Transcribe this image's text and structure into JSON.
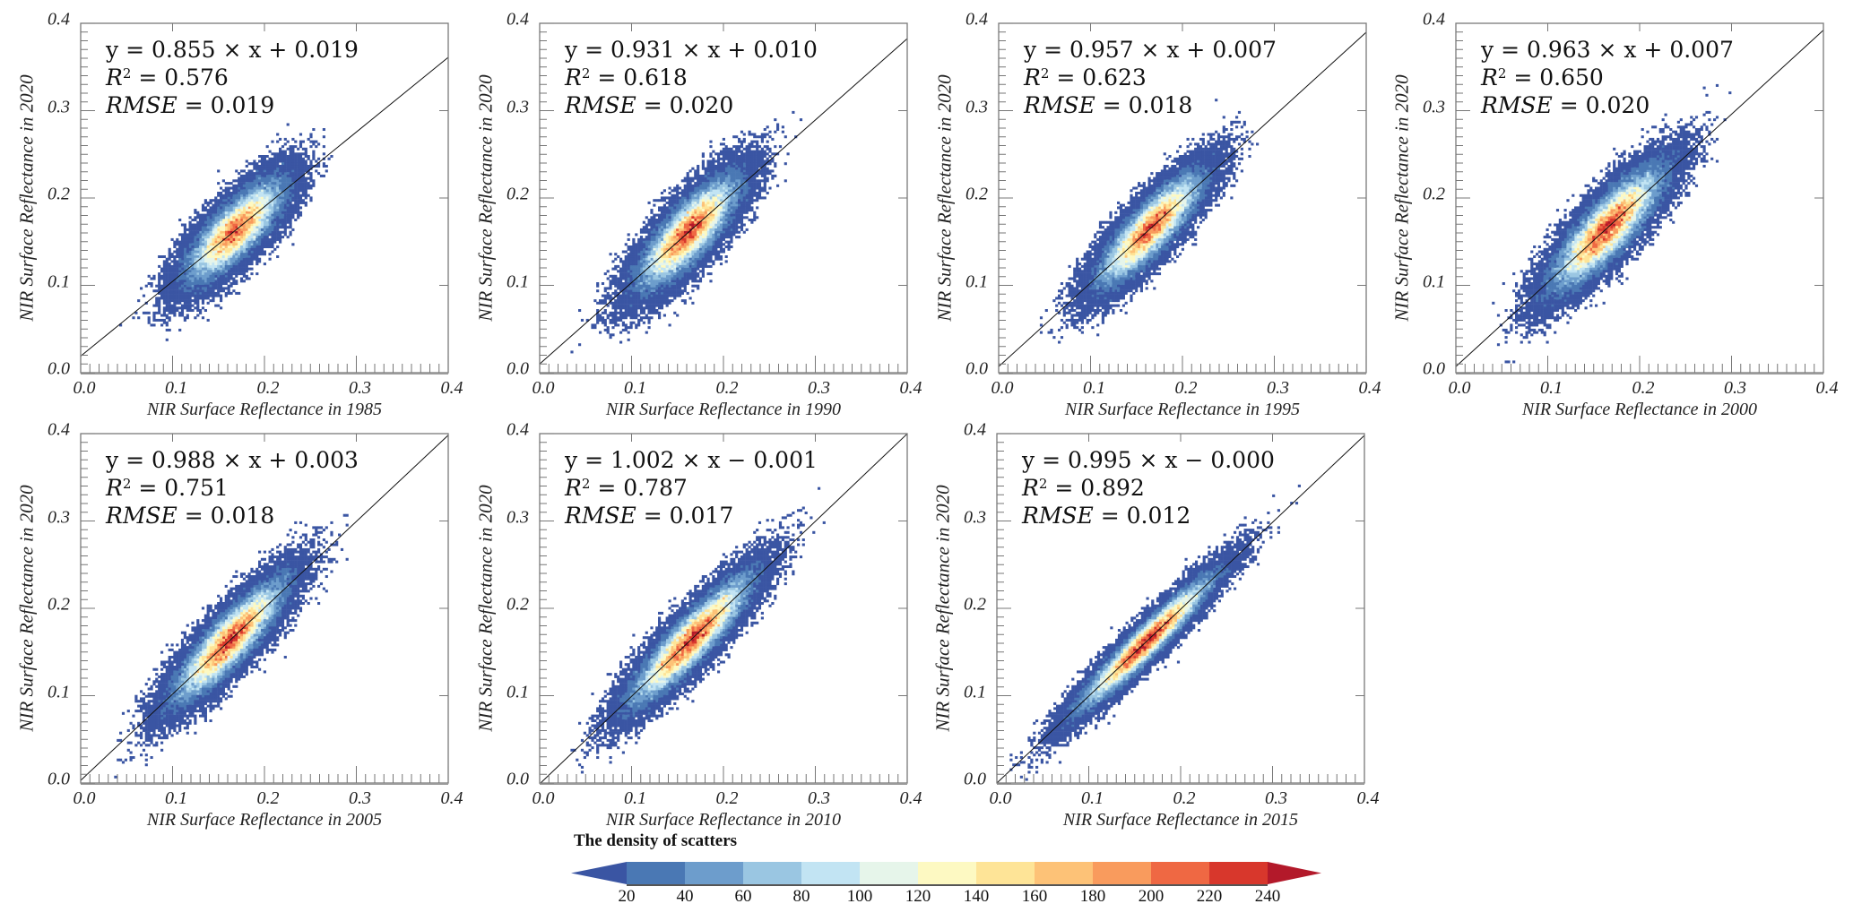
{
  "stat_labels": {
    "r2": "R",
    "r2_sup": "2",
    "rmse": "RMSE"
  },
  "chart_data": [
    {
      "type": "scatter",
      "subtype": "density",
      "xlabel": "NIR Surface Reflectance in 1985",
      "ylabel": "NIR Surface Reflectance in 2020",
      "xlim": [
        0,
        0.4
      ],
      "ylim": [
        0,
        0.4
      ],
      "xticks": [
        "0.0",
        "0.1",
        "0.2",
        "0.3",
        "0.4"
      ],
      "yticks": [
        "0.0",
        "0.1",
        "0.2",
        "0.3",
        "0.4"
      ],
      "equation": "y = 0.855 × x + 0.019",
      "r2": "0.576",
      "rmse": "0.019",
      "fit": {
        "slope": 0.855,
        "intercept": 0.019
      },
      "cloud": {
        "x_mean": 0.168,
        "x_sd": 0.028
      }
    },
    {
      "type": "scatter",
      "subtype": "density",
      "xlabel": "NIR Surface Reflectance in 1990",
      "ylabel": "NIR Surface Reflectance in 2020",
      "xlim": [
        0,
        0.4
      ],
      "ylim": [
        0,
        0.4
      ],
      "xticks": [
        "0.0",
        "0.1",
        "0.2",
        "0.3",
        "0.4"
      ],
      "yticks": [
        "0.0",
        "0.1",
        "0.2",
        "0.3",
        "0.4"
      ],
      "equation": "y = 0.931 × x + 0.010",
      "r2": "0.618",
      "rmse": "0.020",
      "fit": {
        "slope": 0.931,
        "intercept": 0.01
      },
      "cloud": {
        "x_mean": 0.162,
        "x_sd": 0.029
      }
    },
    {
      "type": "scatter",
      "subtype": "density",
      "xlabel": "NIR Surface Reflectance in 1995",
      "ylabel": "NIR Surface Reflectance in 2020",
      "xlim": [
        0,
        0.4
      ],
      "ylim": [
        0,
        0.4
      ],
      "xticks": [
        "0.0",
        "0.1",
        "0.2",
        "0.3",
        "0.4"
      ],
      "yticks": [
        "0.0",
        "0.1",
        "0.2",
        "0.3",
        "0.4"
      ],
      "equation": "y = 0.957 × x + 0.007",
      "r2": "0.623",
      "rmse": "0.018",
      "fit": {
        "slope": 0.957,
        "intercept": 0.007
      },
      "cloud": {
        "x_mean": 0.165,
        "x_sd": 0.03
      }
    },
    {
      "type": "scatter",
      "subtype": "density",
      "xlabel": "NIR Surface Reflectance in 2000",
      "ylabel": "NIR Surface Reflectance in 2020",
      "xlim": [
        0,
        0.4
      ],
      "ylim": [
        0,
        0.4
      ],
      "xticks": [
        "0.0",
        "0.1",
        "0.2",
        "0.3",
        "0.4"
      ],
      "yticks": [
        "0.0",
        "0.1",
        "0.2",
        "0.3",
        "0.4"
      ],
      "equation": "y = 0.963 × x + 0.007",
      "r2": "0.650",
      "rmse": "0.020",
      "fit": {
        "slope": 0.963,
        "intercept": 0.007
      },
      "cloud": {
        "x_mean": 0.165,
        "x_sd": 0.032
      }
    },
    {
      "type": "scatter",
      "subtype": "density",
      "xlabel": "NIR Surface Reflectance in 2005",
      "ylabel": "NIR Surface Reflectance in 2020",
      "xlim": [
        0,
        0.4
      ],
      "ylim": [
        0,
        0.4
      ],
      "xticks": [
        "0.0",
        "0.1",
        "0.2",
        "0.3",
        "0.4"
      ],
      "yticks": [
        "0.0",
        "0.1",
        "0.2",
        "0.3",
        "0.4"
      ],
      "equation": "y = 0.988 × x + 0.003",
      "r2": "0.751",
      "rmse": "0.018",
      "fit": {
        "slope": 0.988,
        "intercept": 0.003
      },
      "cloud": {
        "x_mean": 0.162,
        "x_sd": 0.032
      }
    },
    {
      "type": "scatter",
      "subtype": "density",
      "xlabel": "NIR Surface Reflectance in 2010",
      "ylabel": "NIR Surface Reflectance in 2020",
      "xlim": [
        0,
        0.4
      ],
      "ylim": [
        0,
        0.4
      ],
      "xticks": [
        "0.0",
        "0.1",
        "0.2",
        "0.3",
        "0.4"
      ],
      "yticks": [
        "0.0",
        "0.1",
        "0.2",
        "0.3",
        "0.4"
      ],
      "equation": "y = 1.002 × x − 0.001",
      "r2": "0.787",
      "rmse": "0.017",
      "fit": {
        "slope": 1.002,
        "intercept": -0.001
      },
      "cloud": {
        "x_mean": 0.165,
        "x_sd": 0.034
      }
    },
    {
      "type": "scatter",
      "subtype": "density",
      "xlabel": "NIR Surface Reflectance in 2015",
      "ylabel": "NIR Surface Reflectance in 2020",
      "xlim": [
        0,
        0.4
      ],
      "ylim": [
        0,
        0.4
      ],
      "xticks": [
        "0.0",
        "0.1",
        "0.2",
        "0.3",
        "0.4"
      ],
      "yticks": [
        "0.0",
        "0.1",
        "0.2",
        "0.3",
        "0.4"
      ],
      "equation": "y = 0.995 × x − 0.000",
      "r2": "0.892",
      "rmse": "0.012",
      "fit": {
        "slope": 0.995,
        "intercept": 0.0
      },
      "cloud": {
        "x_mean": 0.162,
        "x_sd": 0.038
      }
    }
  ],
  "colorbar": {
    "title": "The density of scatters",
    "ticks": [
      "20",
      "40",
      "60",
      "80",
      "100",
      "120",
      "140",
      "160",
      "180",
      "200",
      "220",
      "240"
    ],
    "under_color": "#3a55a3",
    "over_color": "#b3192a",
    "colors": [
      "#4a78b4",
      "#6d9dcc",
      "#9ac6e2",
      "#c2e4f3",
      "#e6f5ea",
      "#fdf9c2",
      "#fee497",
      "#fdc277",
      "#f99b5d",
      "#ef6843",
      "#d8372c"
    ]
  }
}
